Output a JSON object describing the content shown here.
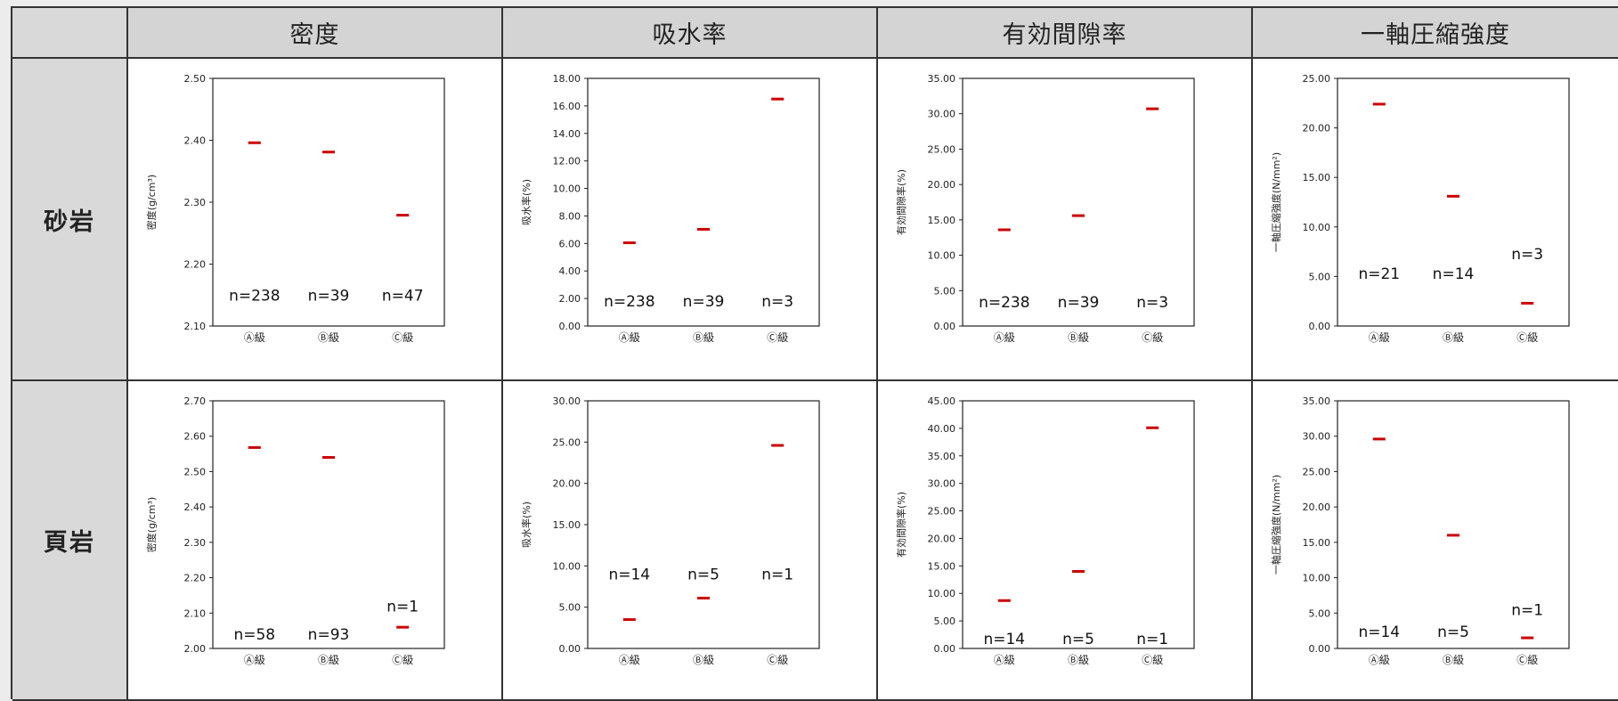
{
  "table": {
    "columns": [
      "密度",
      "吸水率",
      "有効間隙率",
      "一軸圧縮強度"
    ],
    "rows": [
      "砂岩",
      "頁岩"
    ]
  },
  "marker_color": "#cc0000",
  "chart_data": [
    {
      "type": "scatter",
      "row": "砂岩",
      "column": "密度",
      "ylabel": "密度(g/cm³)",
      "ylim": [
        2.1,
        2.5
      ],
      "yticks": [
        2.1,
        2.2,
        2.3,
        2.4,
        2.5
      ],
      "decimals": 2,
      "categories": [
        "Ⓐ級",
        "Ⓑ級",
        "Ⓒ級"
      ],
      "values": [
        2.396,
        2.381,
        2.279
      ],
      "n_labels": [
        "n=238",
        "n=39",
        "n=47"
      ],
      "n_label_y": [
        2.15,
        2.15,
        2.15
      ]
    },
    {
      "type": "scatter",
      "row": "砂岩",
      "column": "吸水率",
      "ylabel": "吸水率(%)",
      "ylim": [
        0,
        18
      ],
      "yticks": [
        0,
        2,
        4,
        6,
        8,
        10,
        12,
        14,
        16,
        18
      ],
      "decimals": 2,
      "categories": [
        "Ⓐ級",
        "Ⓑ級",
        "Ⓒ級"
      ],
      "values": [
        6.05,
        7.03,
        16.5
      ],
      "n_labels": [
        "n=238",
        "n=39",
        "n=3"
      ],
      "n_label_y": [
        1.8,
        1.8,
        1.8
      ]
    },
    {
      "type": "scatter",
      "row": "砂岩",
      "column": "有効間隙率",
      "ylabel": "有効間隙率(%)",
      "ylim": [
        0,
        35
      ],
      "yticks": [
        0,
        5,
        10,
        15,
        20,
        25,
        30,
        35
      ],
      "decimals": 2,
      "categories": [
        "Ⓐ級",
        "Ⓑ級",
        "Ⓒ級"
      ],
      "values": [
        13.6,
        15.6,
        30.7
      ],
      "n_labels": [
        "n=238",
        "n=39",
        "n=3"
      ],
      "n_label_y": [
        3.4,
        3.4,
        3.4
      ]
    },
    {
      "type": "scatter",
      "row": "砂岩",
      "column": "一軸圧縮強度",
      "ylabel": "一軸圧縮強度(N/mm²)",
      "ylim": [
        0,
        25
      ],
      "yticks": [
        0,
        5,
        10,
        15,
        20,
        25
      ],
      "decimals": 2,
      "categories": [
        "Ⓐ級",
        "Ⓑ級",
        "Ⓒ級"
      ],
      "values": [
        22.4,
        13.1,
        2.3
      ],
      "n_labels": [
        "n=21",
        "n=14",
        "n=3"
      ],
      "n_label_y": [
        5.3,
        5.3,
        7.3
      ]
    },
    {
      "type": "scatter",
      "row": "頁岩",
      "column": "密度",
      "ylabel": "密度(g/cm³)",
      "ylim": [
        2.0,
        2.7
      ],
      "yticks": [
        2.0,
        2.1,
        2.2,
        2.3,
        2.4,
        2.5,
        2.6,
        2.7
      ],
      "decimals": 2,
      "categories": [
        "Ⓐ級",
        "Ⓑ級",
        "Ⓒ級"
      ],
      "values": [
        2.568,
        2.54,
        2.06
      ],
      "n_labels": [
        "n=58",
        "n=93",
        "n=1"
      ],
      "n_label_y": [
        2.04,
        2.04,
        2.12
      ]
    },
    {
      "type": "scatter",
      "row": "頁岩",
      "column": "吸水率",
      "ylabel": "吸水率(%)",
      "ylim": [
        0,
        30
      ],
      "yticks": [
        0,
        5,
        10,
        15,
        20,
        25,
        30
      ],
      "decimals": 2,
      "categories": [
        "Ⓐ級",
        "Ⓑ級",
        "Ⓒ級"
      ],
      "values": [
        3.5,
        6.1,
        24.6
      ],
      "n_labels": [
        "n=14",
        "n=5",
        "n=1"
      ],
      "n_label_y": [
        9.0,
        9.0,
        9.0
      ]
    },
    {
      "type": "scatter",
      "row": "頁岩",
      "column": "有効間隙率",
      "ylabel": "有効間隙率(%)",
      "ylim": [
        0,
        45
      ],
      "yticks": [
        0,
        5,
        10,
        15,
        20,
        25,
        30,
        35,
        40,
        45
      ],
      "decimals": 2,
      "categories": [
        "Ⓐ級",
        "Ⓑ級",
        "Ⓒ級"
      ],
      "values": [
        8.7,
        14.0,
        40.1
      ],
      "n_labels": [
        "n=14",
        "n=5",
        "n=1"
      ],
      "n_label_y": [
        1.8,
        1.8,
        1.8
      ]
    },
    {
      "type": "scatter",
      "row": "頁岩",
      "column": "一軸圧縮強度",
      "ylabel": "一軸圧縮強度(N/mm²)",
      "ylim": [
        0,
        35
      ],
      "yticks": [
        0,
        5,
        10,
        15,
        20,
        25,
        30,
        35
      ],
      "decimals": 2,
      "categories": [
        "Ⓐ級",
        "Ⓑ級",
        "Ⓒ級"
      ],
      "values": [
        29.6,
        16.0,
        1.5
      ],
      "n_labels": [
        "n=14",
        "n=5",
        "n=1"
      ],
      "n_label_y": [
        2.4,
        2.4,
        5.5
      ]
    }
  ]
}
